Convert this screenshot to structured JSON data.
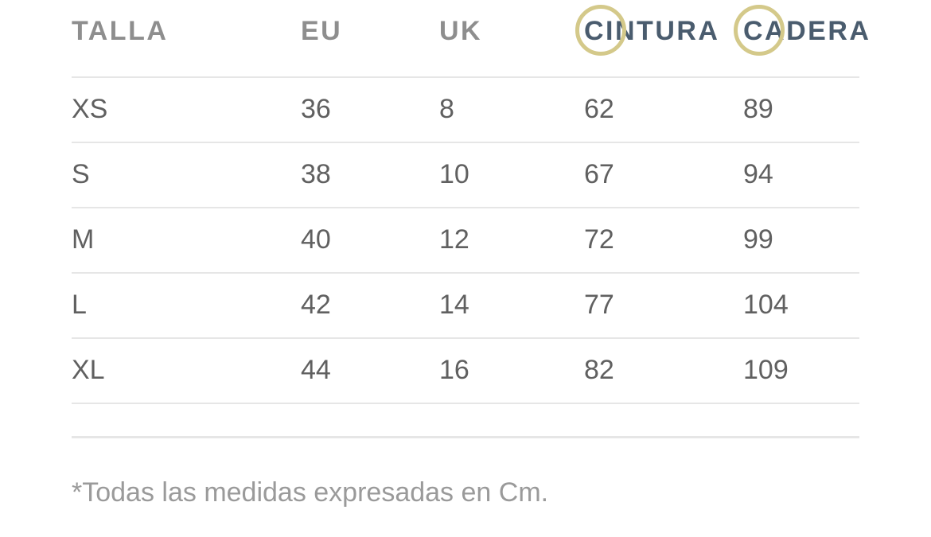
{
  "table": {
    "headers": [
      "TALLA",
      "EU",
      "UK",
      "CINTURA",
      "CADERA"
    ],
    "rows": [
      [
        "XS",
        "36",
        "8",
        "62",
        "89"
      ],
      [
        "S",
        "38",
        "10",
        "67",
        "94"
      ],
      [
        "M",
        "40",
        "12",
        "72",
        "99"
      ],
      [
        "L",
        "42",
        "14",
        "77",
        "104"
      ],
      [
        "XL",
        "44",
        "16",
        "82",
        "109"
      ]
    ]
  },
  "footnote": "*Todas las medidas expresadas en Cm.",
  "colors": {
    "header_text": "#8e8e8e",
    "accent_header_text": "#4a5c6e",
    "highlight_ring": "#d4c98a",
    "body_text": "#606060",
    "divider": "#e6e6e6",
    "footnote_text": "#9a9a9a"
  }
}
